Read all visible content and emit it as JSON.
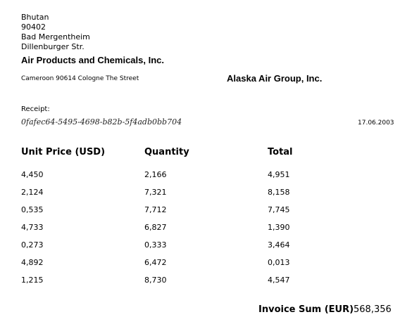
{
  "sender_address": [
    "Bhutan",
    "90402",
    "Bad Mergentheim",
    "Dillenburger Str."
  ],
  "sender_company": "Air Products and Chemicals, Inc.",
  "recipient_line": "Cameroon 90614 Cologne The Street",
  "recipient_company": "Alaska Air Group, Inc.",
  "receipt_label": "Receipt:",
  "receipt_id": "0fafec64-5495-4698-b82b-5f4adb0bb704",
  "date": "17.06.2003",
  "table": {
    "headers": [
      "Unit Price (USD)",
      "Quantity",
      "Total"
    ],
    "rows": [
      [
        "4,450",
        "2,166",
        "4,951"
      ],
      [
        "2,124",
        "7,321",
        "8,158"
      ],
      [
        "0,535",
        "7,712",
        "7,745"
      ],
      [
        "4,733",
        "6,827",
        "1,390"
      ],
      [
        "0,273",
        "0,333",
        "3,464"
      ],
      [
        "4,892",
        "6,472",
        "0,013"
      ],
      [
        "1,215",
        "8,730",
        "4,547"
      ]
    ]
  },
  "invoice_sum_label": "Invoice Sum (EUR)",
  "invoice_sum_value": "568,356"
}
